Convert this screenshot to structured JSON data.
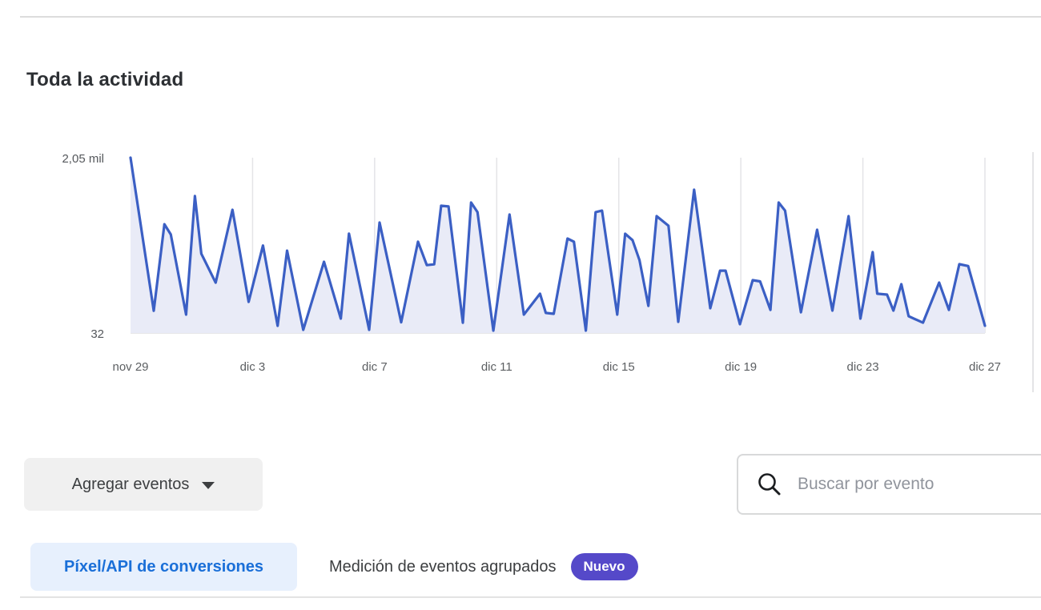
{
  "page": {
    "title": "Toda la actividad"
  },
  "toolbar": {
    "add_events_label": "Agregar eventos",
    "add_events_icon": "caret-down-icon",
    "search_icon": "magnifier-icon",
    "search_placeholder": "Buscar por evento",
    "search_value": ""
  },
  "tabs": [
    {
      "label": "Píxel/API de conversiones",
      "active": true
    },
    {
      "label": "Medición de eventos agrupados",
      "active": false,
      "badge": "Nuevo"
    }
  ],
  "colors": {
    "line": "#3b5fc4",
    "area_fill": "#e9ebf7",
    "gridline": "#e4e4e7",
    "baseline": "#e7e7e9",
    "accent_blue": "#1a6fd8",
    "tab_active_bg": "#e7f0fd",
    "badge_purple": "#5549c9",
    "text_dark": "#2c2f33",
    "text_gray": "#5c5f62"
  },
  "chart_data": {
    "type": "line",
    "title": "Toda la actividad",
    "series_name": "Toda la actividad",
    "legend": "none",
    "grid": "vertical-only",
    "y_ticks": [
      "2,05 mil",
      "32"
    ],
    "y_range": [
      32,
      2050
    ],
    "x_tick_labels": [
      "nov 29",
      "dic 3",
      "dic 7",
      "dic 11",
      "dic 15",
      "dic 19",
      "dic 23",
      "dic 27"
    ],
    "x_tick_days": [
      0,
      4,
      8,
      12,
      16,
      20,
      24,
      28
    ],
    "x_range_days": [
      0,
      28
    ],
    "points": [
      [
        0,
        2050
      ],
      [
        0.76,
        255
      ],
      [
        1.11,
        1270
      ],
      [
        1.32,
        1150
      ],
      [
        1.82,
        210
      ],
      [
        2.11,
        1600
      ],
      [
        2.32,
        925
      ],
      [
        2.79,
        585
      ],
      [
        3.34,
        1440
      ],
      [
        3.87,
        360
      ],
      [
        4.34,
        1020
      ],
      [
        4.82,
        79
      ],
      [
        5.13,
        960
      ],
      [
        5.66,
        32
      ],
      [
        6.34,
        830
      ],
      [
        6.89,
        163
      ],
      [
        7.16,
        1160
      ],
      [
        7.82,
        32
      ],
      [
        8.16,
        1290
      ],
      [
        8.87,
        120
      ],
      [
        9.42,
        1065
      ],
      [
        9.71,
        790
      ],
      [
        9.95,
        800
      ],
      [
        10.18,
        1487
      ],
      [
        10.42,
        1478
      ],
      [
        10.89,
        116
      ],
      [
        11.16,
        1524
      ],
      [
        11.37,
        1412
      ],
      [
        11.89,
        23
      ],
      [
        12.42,
        1384
      ],
      [
        12.89,
        210
      ],
      [
        13.42,
        455
      ],
      [
        13.61,
        230
      ],
      [
        13.87,
        220
      ],
      [
        14.32,
        1102
      ],
      [
        14.53,
        1065
      ],
      [
        14.92,
        23
      ],
      [
        15.24,
        1412
      ],
      [
        15.45,
        1430
      ],
      [
        15.95,
        210
      ],
      [
        16.21,
        1158
      ],
      [
        16.45,
        1083
      ],
      [
        16.68,
        849
      ],
      [
        16.97,
        313
      ],
      [
        17.24,
        1365
      ],
      [
        17.63,
        1252
      ],
      [
        17.95,
        126
      ],
      [
        18.47,
        1675
      ],
      [
        19.0,
        285
      ],
      [
        19.32,
        726
      ],
      [
        19.5,
        726
      ],
      [
        19.97,
        98
      ],
      [
        20.39,
        614
      ],
      [
        20.63,
        600
      ],
      [
        20.97,
        266
      ],
      [
        21.24,
        1524
      ],
      [
        21.45,
        1430
      ],
      [
        21.97,
        238
      ],
      [
        22.5,
        1205
      ],
      [
        23.0,
        257
      ],
      [
        23.53,
        1365
      ],
      [
        23.92,
        163
      ],
      [
        24.32,
        943
      ],
      [
        24.47,
        455
      ],
      [
        24.79,
        445
      ],
      [
        25.0,
        257
      ],
      [
        25.26,
        567
      ],
      [
        25.5,
        192
      ],
      [
        25.97,
        116
      ],
      [
        26.5,
        586
      ],
      [
        26.82,
        266
      ],
      [
        27.16,
        802
      ],
      [
        27.45,
        780
      ],
      [
        28.0,
        80
      ]
    ]
  }
}
